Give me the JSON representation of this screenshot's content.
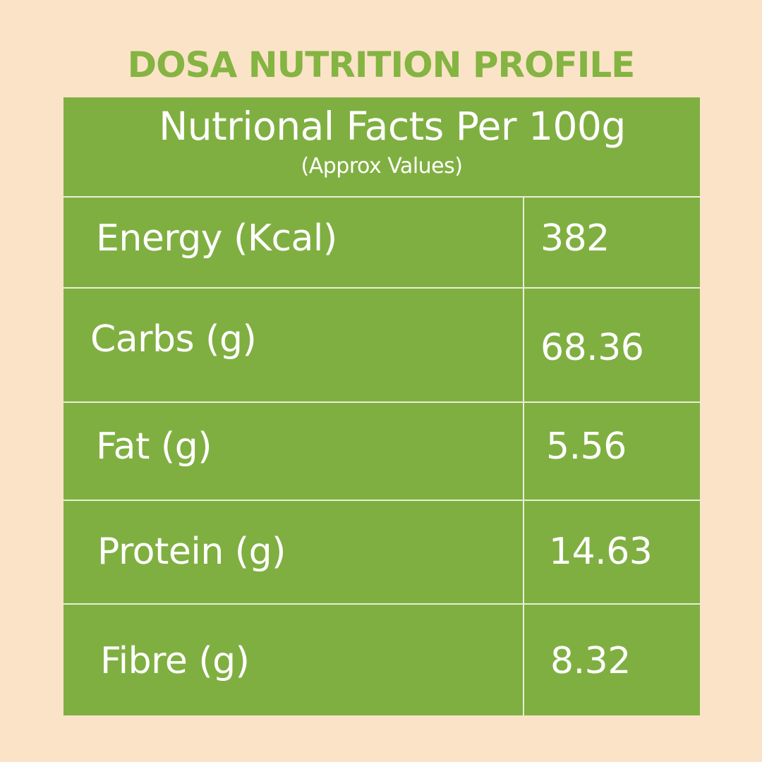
{
  "title": "DOSA NUTRITION PROFILE",
  "table": {
    "header": {
      "title": "Nutrional Facts Per 100g",
      "subtitle": "(Approx Values)"
    },
    "rows": [
      {
        "label": "Energy (Kcal)",
        "value": "382"
      },
      {
        "label": "Carbs (g)",
        "value": "68.36"
      },
      {
        "label": "Fat (g)",
        "value": "5.56"
      },
      {
        "label": "Protein (g)",
        "value": "14.63"
      },
      {
        "label": "Fibre (g)",
        "value": "8.32"
      }
    ]
  },
  "colors": {
    "background": "#fbe3c7",
    "accent": "#84b441",
    "table": "#80af41",
    "text": "#ffffff"
  }
}
